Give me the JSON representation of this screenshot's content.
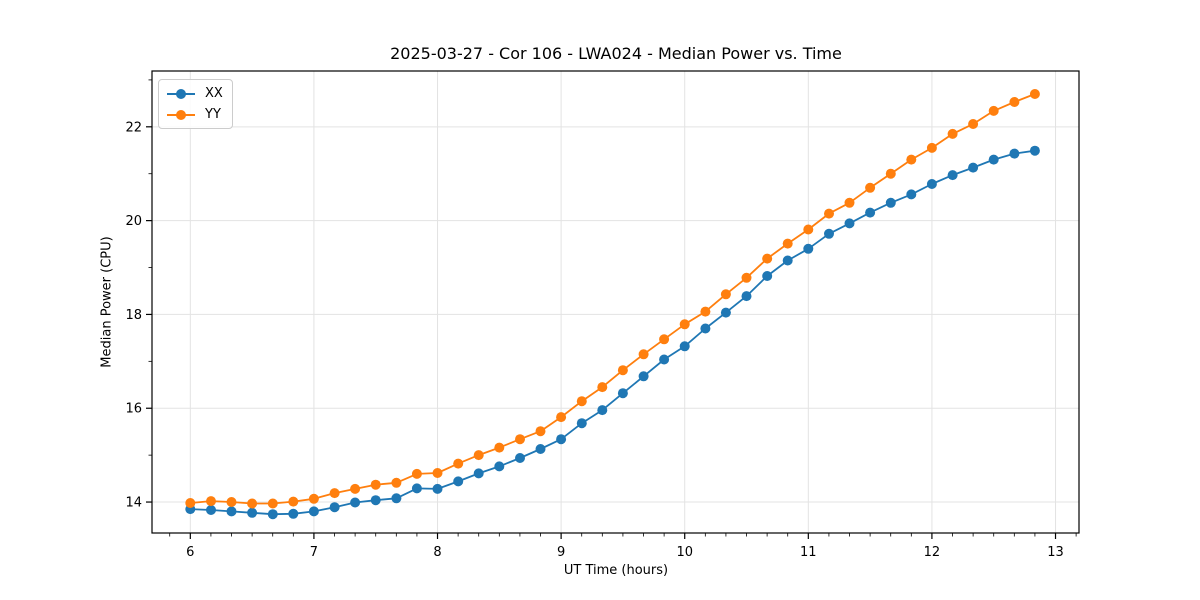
{
  "figure": {
    "title": "2025-03-27 - Cor 106 - LWA024 - Median Power vs. Time",
    "background_color": "#ffffff",
    "text_color": "#000000"
  },
  "chart_data": {
    "type": "line",
    "title": "2025-03-27 - Cor 106 - LWA024 - Median Power vs. Time",
    "xlabel": "UT Time (hours)",
    "ylabel": "Median Power (CPU)",
    "xlim": [
      5.69,
      13.19
    ],
    "ylim": [
      13.34,
      23.19
    ],
    "x_major_ticks": [
      6,
      7,
      8,
      9,
      10,
      11,
      12,
      13
    ],
    "y_major_ticks": [
      14,
      16,
      18,
      20,
      22
    ],
    "x_minor_tick_step": 0.1667,
    "y_minor_tick_step": 1,
    "grid": true,
    "grid_color": "#e3e3e3",
    "spine_color": "#000000",
    "legend_position": "upper-left",
    "marker": "o",
    "x": [
      6.0,
      6.167,
      6.333,
      6.5,
      6.667,
      6.833,
      7.0,
      7.167,
      7.333,
      7.5,
      7.667,
      7.833,
      8.0,
      8.167,
      8.333,
      8.5,
      8.667,
      8.833,
      9.0,
      9.167,
      9.333,
      9.5,
      9.667,
      9.833,
      10.0,
      10.167,
      10.333,
      10.5,
      10.667,
      10.833,
      11.0,
      11.167,
      11.333,
      11.5,
      11.667,
      11.833,
      12.0,
      12.167,
      12.333,
      12.5,
      12.667,
      12.833
    ],
    "series": [
      {
        "name": "XX",
        "color": "#1f77b4",
        "values": [
          13.85,
          13.83,
          13.8,
          13.77,
          13.74,
          13.75,
          13.8,
          13.89,
          13.99,
          14.04,
          14.08,
          14.29,
          14.28,
          14.44,
          14.61,
          14.76,
          14.94,
          15.13,
          15.34,
          15.68,
          15.96,
          16.32,
          16.68,
          17.04,
          17.32,
          17.7,
          18.04,
          18.39,
          18.82,
          19.15,
          19.4,
          19.72,
          19.94,
          20.17,
          20.38,
          20.56,
          20.78,
          20.97,
          21.13,
          21.3,
          21.43,
          21.49
        ]
      },
      {
        "name": "YY",
        "color": "#ff7f0e",
        "values": [
          13.98,
          14.02,
          14.0,
          13.97,
          13.97,
          14.01,
          14.07,
          14.19,
          14.28,
          14.37,
          14.41,
          14.6,
          14.62,
          14.82,
          15.0,
          15.16,
          15.34,
          15.51,
          15.81,
          16.15,
          16.45,
          16.81,
          17.15,
          17.47,
          17.79,
          18.06,
          18.43,
          18.78,
          19.19,
          19.51,
          19.81,
          20.15,
          20.38,
          20.7,
          21.0,
          21.3,
          21.55,
          21.85,
          22.06,
          22.34,
          22.53,
          22.7
        ]
      }
    ]
  }
}
